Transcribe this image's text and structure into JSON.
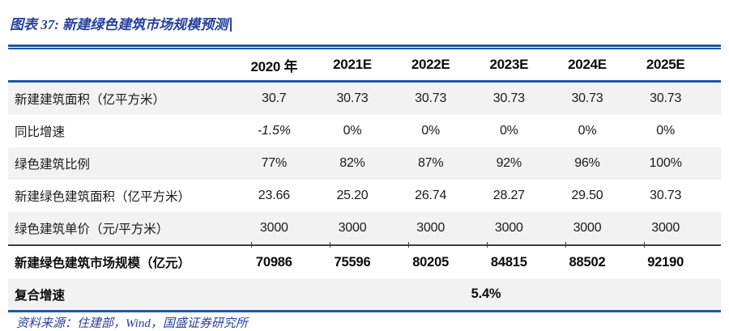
{
  "figure_title": "图表 37: 新建绿色建筑市场规模预测",
  "source_note": "资料来源：住建部，Wind，国盛证券研究所",
  "colors": {
    "accent_blue": "#1D57A9",
    "title_blue": "#27409E",
    "stripe_gray": "#F2F2F2",
    "divider_black": "#3D3D3D"
  },
  "chart_data": {
    "type": "table",
    "title": "新建绿色建筑市场规模预测",
    "columns": [
      "",
      "2020 年",
      "2021E",
      "2022E",
      "2023E",
      "2024E",
      "2025E"
    ],
    "rows": [
      {
        "label": "新建建筑面积（亿平方米）",
        "values": [
          "30.7",
          "30.73",
          "30.73",
          "30.73",
          "30.73",
          "30.73"
        ]
      },
      {
        "label": "同比增速",
        "values": [
          "-1.5%",
          "0%",
          "0%",
          "0%",
          "0%",
          "0%"
        ],
        "italic_indices": [
          0
        ]
      },
      {
        "label": "绿色建筑比例",
        "values": [
          "77%",
          "82%",
          "87%",
          "92%",
          "96%",
          "100%"
        ]
      },
      {
        "label": "新建绿色建筑面积（亿平方米）",
        "values": [
          "23.66",
          "25.20",
          "26.74",
          "28.27",
          "29.50",
          "30.73"
        ]
      },
      {
        "label": "绿色建筑单价（元/平方米）",
        "values": [
          "3000",
          "3000",
          "3000",
          "3000",
          "3000",
          "3000"
        ]
      },
      {
        "label": "新建绿色建筑市场规模（亿元）",
        "values": [
          "70986",
          "75596",
          "80205",
          "84815",
          "88502",
          "92190"
        ],
        "bold": true
      },
      {
        "label": "复合增速",
        "merged_value": "5.4%",
        "bold": true
      }
    ]
  }
}
